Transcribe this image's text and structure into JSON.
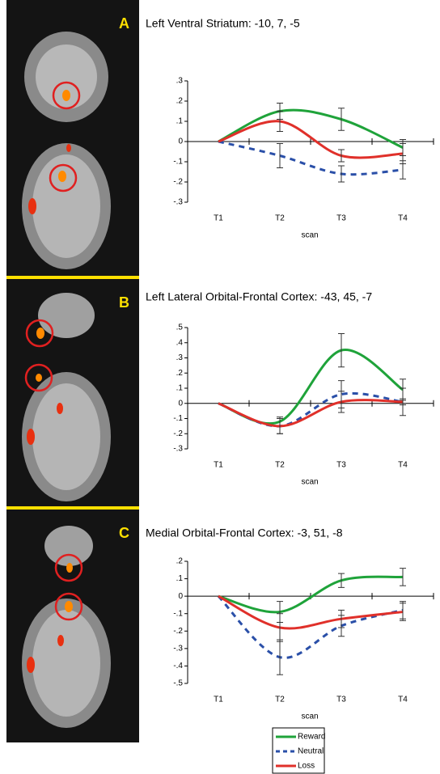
{
  "chart_data": [
    {
      "type": "line",
      "panel": "A",
      "title": "Left Ventral Striatum: -10, 7, -5",
      "xlabel": "scan",
      "categories": [
        "T1",
        "T2",
        "T3",
        "T4"
      ],
      "ylim": [
        -0.3,
        0.3
      ],
      "yticks": [
        {
          "value": 0.3,
          "label": ".3"
        },
        {
          "value": 0.2,
          "label": ".2"
        },
        {
          "value": 0.1,
          "label": ".1"
        },
        0,
        {
          "value": -0.1,
          "label": "-.1"
        },
        {
          "value": -0.2,
          "label": "-.2"
        },
        {
          "value": -0.3,
          "label": "-.3"
        }
      ],
      "series": [
        {
          "name": "Reward",
          "color": "#1fa33a",
          "dashed": false,
          "values": [
            0,
            0.15,
            0.11,
            -0.03
          ],
          "errors": [
            null,
            0.04,
            0.055,
            0.04
          ]
        },
        {
          "name": "Neutral",
          "color": "#2a4fa8",
          "dashed": true,
          "values": [
            0,
            -0.07,
            -0.16,
            -0.14
          ],
          "errors": [
            null,
            0.06,
            0.04,
            0.045
          ]
        },
        {
          "name": "Loss",
          "color": "#e0302a",
          "dashed": false,
          "values": [
            0,
            0.1,
            -0.07,
            -0.06
          ],
          "errors": [
            null,
            0.05,
            0.03,
            0.05
          ]
        }
      ]
    },
    {
      "type": "line",
      "panel": "B",
      "title": "Left Lateral Orbital-Frontal Cortex: -43, 45, -7",
      "xlabel": "scan",
      "categories": [
        "T1",
        "T2",
        "T3",
        "T4"
      ],
      "ylim": [
        -0.3,
        0.5
      ],
      "yticks": [
        {
          "value": 0.5,
          "label": ".5"
        },
        {
          "value": 0.4,
          "label": ".4"
        },
        {
          "value": 0.3,
          "label": ".3"
        },
        {
          "value": 0.2,
          "label": ".2"
        },
        {
          "value": 0.1,
          "label": ".1"
        },
        0,
        {
          "value": -0.1,
          "label": "-.1"
        },
        {
          "value": -0.2,
          "label": "-.2"
        },
        {
          "value": -0.3,
          "label": "-.3"
        }
      ],
      "series": [
        {
          "name": "Reward",
          "color": "#1fa33a",
          "dashed": false,
          "values": [
            0,
            -0.12,
            0.35,
            0.09
          ],
          "errors": [
            null,
            0.03,
            0.11,
            0.07
          ]
        },
        {
          "name": "Neutral",
          "color": "#2a4fa8",
          "dashed": true,
          "values": [
            0,
            -0.15,
            0.06,
            0.01
          ],
          "errors": [
            null,
            0.05,
            0.09,
            0.02
          ]
        },
        {
          "name": "Loss",
          "color": "#e0302a",
          "dashed": false,
          "values": [
            0,
            -0.15,
            0.01,
            0.01
          ],
          "errors": [
            null,
            0.05,
            0.07,
            0.09
          ]
        }
      ]
    },
    {
      "type": "line",
      "panel": "C",
      "title": "Medial Orbital-Frontal Cortex: -3, 51, -8",
      "xlabel": "scan",
      "categories": [
        "T1",
        "T2",
        "T3",
        "T4"
      ],
      "ylim": [
        -0.5,
        0.2
      ],
      "yticks": [
        {
          "value": 0.2,
          "label": ".2"
        },
        {
          "value": 0.1,
          "label": ".1"
        },
        0,
        {
          "value": -0.1,
          "label": "-.1"
        },
        {
          "value": -0.2,
          "label": "-.2"
        },
        {
          "value": -0.3,
          "label": "-.3"
        },
        {
          "value": -0.4,
          "label": "-.4"
        },
        {
          "value": -0.5,
          "label": "-.5"
        }
      ],
      "series": [
        {
          "name": "Reward",
          "color": "#1fa33a",
          "dashed": false,
          "values": [
            0,
            -0.09,
            0.09,
            0.11
          ],
          "errors": [
            null,
            0.06,
            0.04,
            0.05
          ]
        },
        {
          "name": "Neutral",
          "color": "#2a4fa8",
          "dashed": true,
          "values": [
            0,
            -0.35,
            -0.17,
            -0.08
          ],
          "errors": [
            null,
            0.1,
            0.06,
            0.05
          ]
        },
        {
          "name": "Loss",
          "color": "#e0302a",
          "dashed": false,
          "values": [
            0,
            -0.18,
            -0.13,
            -0.09
          ],
          "errors": [
            null,
            0.08,
            0.05,
            0.05
          ]
        }
      ]
    }
  ]
}
